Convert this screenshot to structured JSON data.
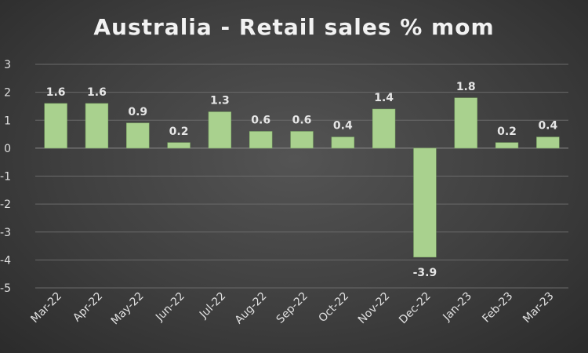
{
  "chart_data": {
    "type": "bar",
    "title": "Australia - Retail sales % mom",
    "categories": [
      "Mar-22",
      "Apr-22",
      "May-22",
      "Jun-22",
      "Jul-22",
      "Aug-22",
      "Sep-22",
      "Oct-22",
      "Nov-22",
      "Dec-22",
      "Jan-23",
      "Feb-23",
      "Mar-23"
    ],
    "values": [
      1.6,
      1.6,
      0.9,
      0.2,
      1.3,
      0.6,
      0.6,
      0.4,
      1.4,
      -3.9,
      1.8,
      0.2,
      0.4
    ],
    "data_labels": [
      "1.6",
      "1.6",
      "0.9",
      "0.2",
      "1.3",
      "0.6",
      "0.6",
      "0.4",
      "1.4",
      "-3.9",
      "1.8",
      "0.2",
      "0.4"
    ],
    "y_ticks": [
      "3",
      "2",
      "1",
      "0",
      "-1",
      "-2",
      "-3",
      "-4",
      "-5"
    ],
    "ylim": [
      -5,
      3
    ],
    "grid": true,
    "bar_color": "#a9d18e",
    "gridline_color": "#6a6a6a",
    "text_color": "#e0e0e0"
  }
}
